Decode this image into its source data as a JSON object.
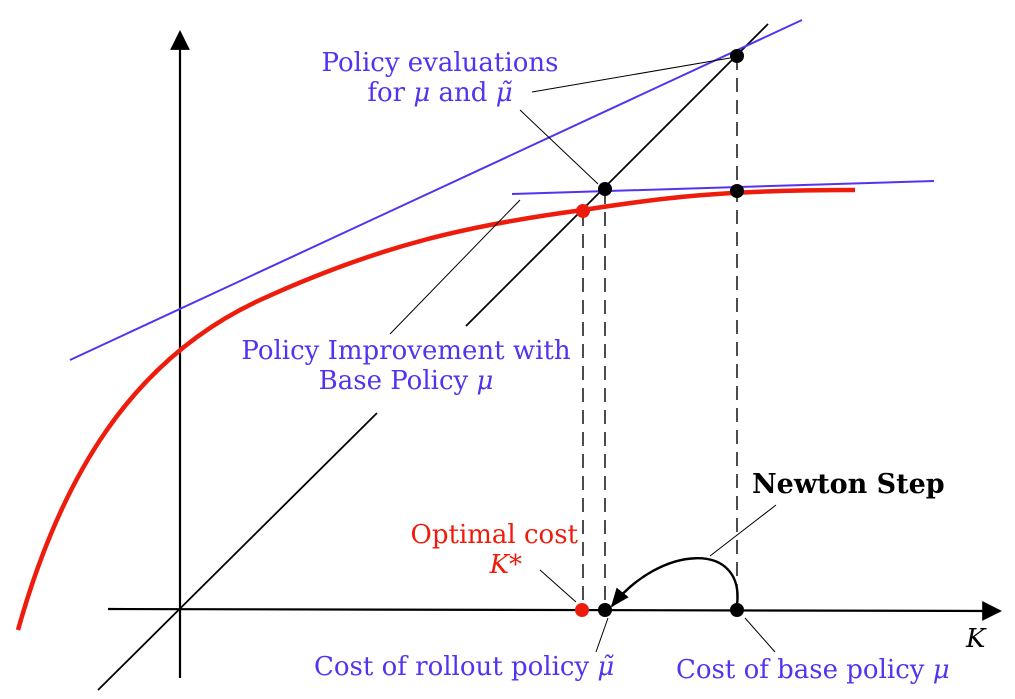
{
  "labels": {
    "policy_evaluations_line1": "Policy evaluations",
    "policy_evaluations_line2_prefix": "for ",
    "mu": "μ",
    "and": " and ",
    "mu_tilde": "μ̃",
    "policy_improvement_line1": "Policy Improvement with",
    "policy_improvement_line2_prefix": "Base Policy ",
    "newton_step": "Newton Step",
    "optimal_cost_line1": "Optimal cost",
    "optimal_cost_symbol": "K*",
    "cost_rollout_prefix": "Cost of rollout policy ",
    "cost_base_prefix": "Cost of base policy ",
    "axis_label": "K"
  },
  "colors": {
    "purple": "#5533ee",
    "red": "#ee1c0c",
    "black": "#000000",
    "dashed": "#000000"
  }
}
